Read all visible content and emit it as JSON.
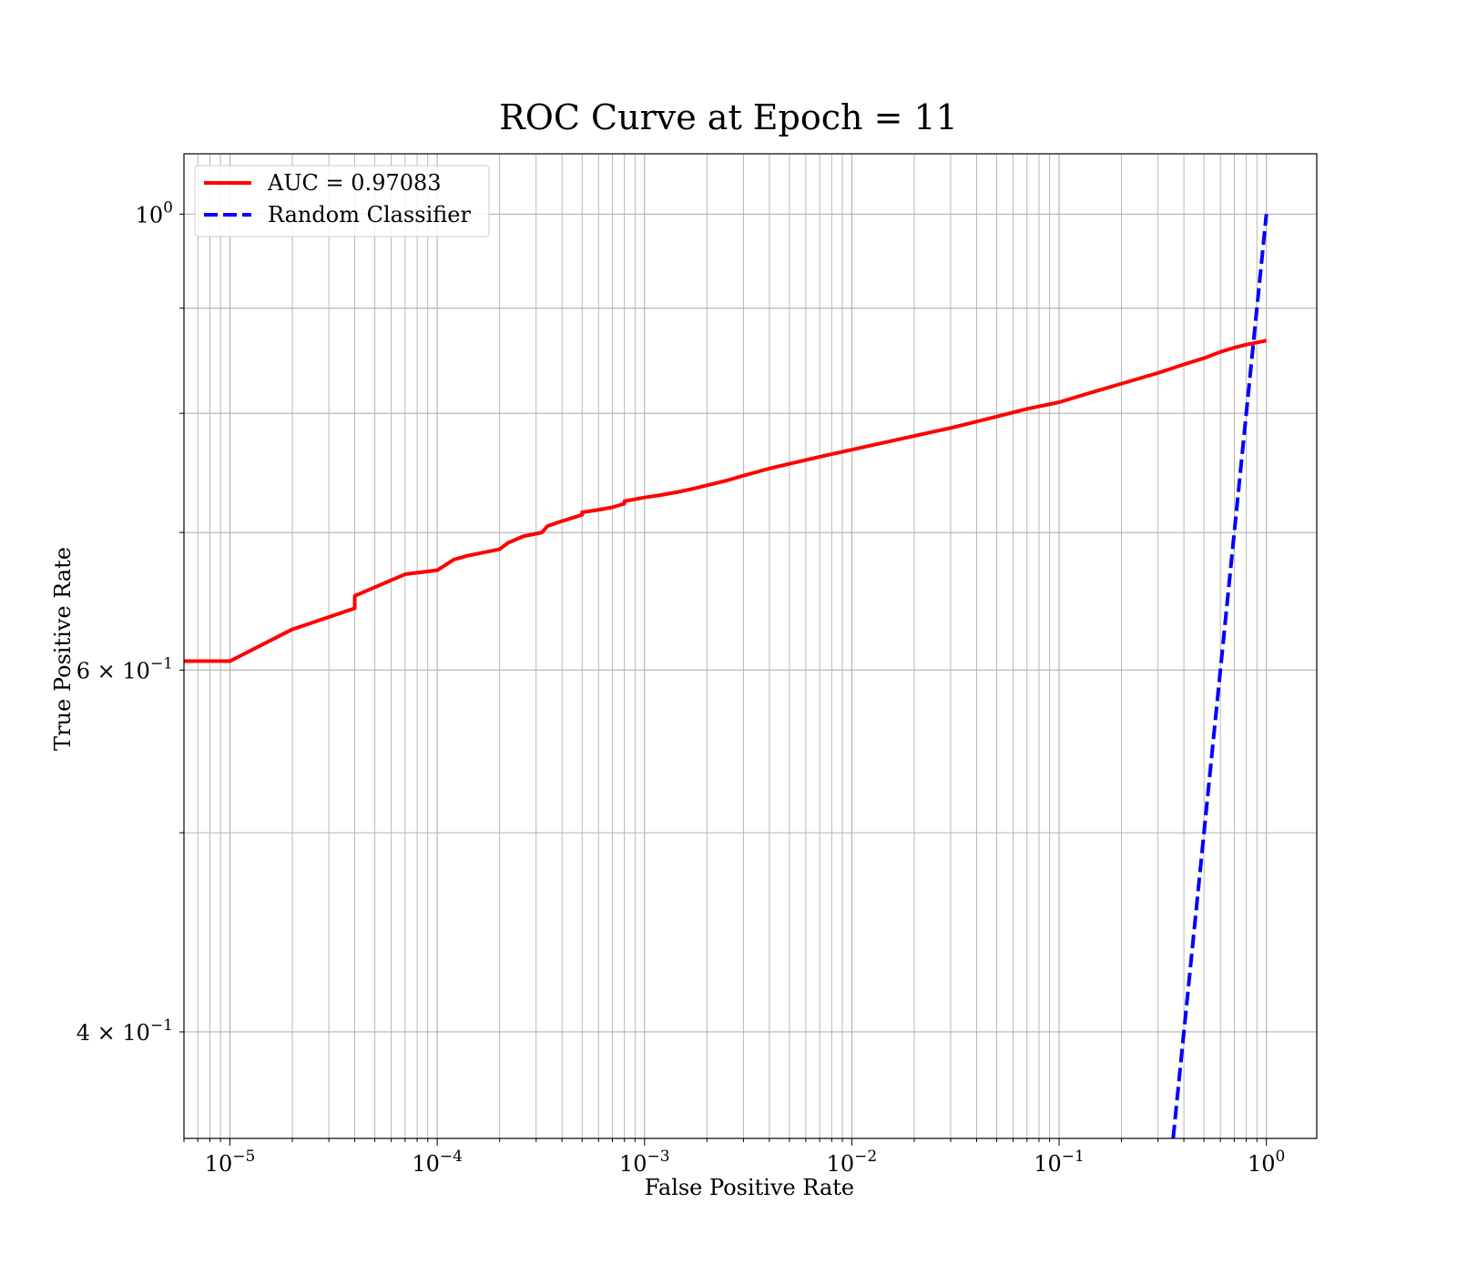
{
  "chart_data": {
    "type": "line",
    "title": "ROC Curve at Epoch = 11",
    "xlabel": "False Positive Rate",
    "ylabel": "True Positive Rate",
    "xscale": "log",
    "yscale": "log",
    "xlim": [
      6e-06,
      1.75
    ],
    "ylim": [
      0.355,
      1.07
    ],
    "grid": true,
    "grid_which": "both",
    "legend_loc": "upper left",
    "x_ticks": [
      {
        "value": 1e-05,
        "base": "10",
        "exp": "−5"
      },
      {
        "value": 0.0001,
        "base": "10",
        "exp": "−4"
      },
      {
        "value": 0.001,
        "base": "10",
        "exp": "−3"
      },
      {
        "value": 0.01,
        "base": "10",
        "exp": "−2"
      },
      {
        "value": 0.1,
        "base": "10",
        "exp": "−1"
      },
      {
        "value": 1,
        "base": "10",
        "exp": "0"
      }
    ],
    "y_ticks": [
      {
        "value": 1.0,
        "mant": "",
        "base": "10",
        "exp": "0"
      },
      {
        "value": 0.6,
        "mant": "6 × ",
        "base": "10",
        "exp": "−1"
      },
      {
        "value": 0.4,
        "mant": "4 × ",
        "base": "10",
        "exp": "−1"
      }
    ],
    "series": [
      {
        "name": "AUC = 0.97083",
        "color": "#ff0000",
        "style": "solid",
        "x": [
          6e-06,
          1e-05,
          2e-05,
          4e-05,
          4e-05,
          7e-05,
          0.0001,
          0.00012,
          0.00014,
          0.0002,
          0.00022,
          0.00026,
          0.00032,
          0.00034,
          0.0004,
          0.0005,
          0.0005,
          0.0006,
          0.0007,
          0.0008,
          0.0008,
          0.001,
          0.0012,
          0.0015,
          0.0018,
          0.002,
          0.0025,
          0.003,
          0.004,
          0.005,
          0.007,
          0.01,
          0.015,
          0.02,
          0.03,
          0.05,
          0.07,
          0.1,
          0.15,
          0.2,
          0.3,
          0.4,
          0.5,
          0.6,
          0.7,
          0.8,
          0.9,
          1.0
        ],
        "y": [
          0.606,
          0.606,
          0.628,
          0.643,
          0.652,
          0.668,
          0.671,
          0.679,
          0.682,
          0.687,
          0.692,
          0.697,
          0.7,
          0.705,
          0.709,
          0.714,
          0.716,
          0.718,
          0.72,
          0.723,
          0.725,
          0.728,
          0.73,
          0.733,
          0.736,
          0.738,
          0.742,
          0.746,
          0.752,
          0.756,
          0.762,
          0.768,
          0.775,
          0.78,
          0.787,
          0.797,
          0.804,
          0.81,
          0.82,
          0.827,
          0.837,
          0.845,
          0.851,
          0.857,
          0.861,
          0.864,
          0.866,
          0.868
        ]
      },
      {
        "name": "Random Classifier",
        "color": "#0000ff",
        "style": "dashed",
        "x": [
          0.355,
          1.0
        ],
        "y": [
          0.355,
          1.0
        ]
      }
    ]
  }
}
